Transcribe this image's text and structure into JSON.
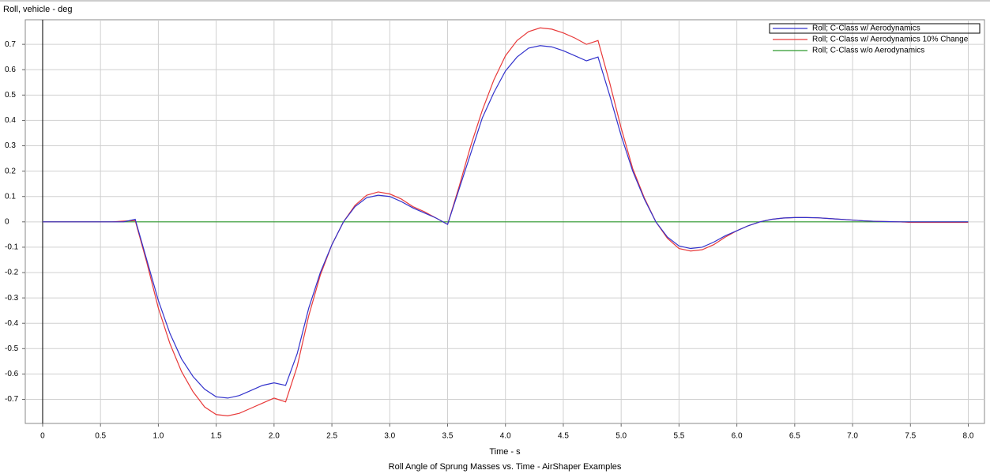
{
  "chart_data": {
    "type": "line",
    "title": "Roll Angle of Sprung Masses vs. Time - AirShaper Examples",
    "y_label": "Roll, vehicle - deg",
    "x_label": "Time - s",
    "x": [
      0,
      0.1,
      0.2,
      0.3,
      0.4,
      0.5,
      0.6,
      0.7,
      0.8,
      0.9,
      1.0,
      1.1,
      1.2,
      1.3,
      1.4,
      1.5,
      1.6,
      1.7,
      1.8,
      1.9,
      2.0,
      2.1,
      2.2,
      2.3,
      2.4,
      2.5,
      2.6,
      2.7,
      2.8,
      2.9,
      3.0,
      3.1,
      3.2,
      3.3,
      3.4,
      3.5,
      3.6,
      3.7,
      3.8,
      3.9,
      4.0,
      4.1,
      4.2,
      4.3,
      4.4,
      4.5,
      4.6,
      4.7,
      4.8,
      4.9,
      5.0,
      5.1,
      5.2,
      5.3,
      5.4,
      5.5,
      5.6,
      5.7,
      5.8,
      5.9,
      6.0,
      6.1,
      6.2,
      6.3,
      6.4,
      6.5,
      6.6,
      6.7,
      6.8,
      6.9,
      7.0,
      7.1,
      7.2,
      7.3,
      7.4,
      7.5,
      7.6,
      7.7,
      7.8,
      7.9,
      8.0
    ],
    "series": [
      {
        "name": "Roll; C-Class w/ Aerodynamics",
        "color": "#3333cc",
        "values": [
          0,
          0,
          0,
          0,
          0,
          0,
          0,
          0,
          0.01,
          -0.15,
          -0.31,
          -0.44,
          -0.54,
          -0.61,
          -0.66,
          -0.69,
          -0.695,
          -0.685,
          -0.665,
          -0.645,
          -0.635,
          -0.645,
          -0.52,
          -0.34,
          -0.2,
          -0.09,
          0,
          0.06,
          0.095,
          0.105,
          0.1,
          0.08,
          0.055,
          0.035,
          0.015,
          -0.01,
          0.13,
          0.27,
          0.41,
          0.51,
          0.595,
          0.65,
          0.685,
          0.695,
          0.69,
          0.675,
          0.655,
          0.635,
          0.65,
          0.5,
          0.34,
          0.2,
          0.09,
          0,
          -0.06,
          -0.095,
          -0.105,
          -0.1,
          -0.08,
          -0.055,
          -0.035,
          -0.015,
          0,
          0.01,
          0.015,
          0.017,
          0.017,
          0.016,
          0.013,
          0.01,
          0.007,
          0.004,
          0.002,
          0.001,
          0,
          0,
          0,
          0,
          0,
          0,
          0
        ]
      },
      {
        "name": "Roll; C-Class w/ Aerodynamics 10% Change",
        "color": "#e83a3a",
        "values": [
          0,
          0,
          0,
          0,
          0,
          0,
          0,
          0.003,
          0.005,
          -0.16,
          -0.34,
          -0.48,
          -0.59,
          -0.67,
          -0.73,
          -0.76,
          -0.765,
          -0.755,
          -0.735,
          -0.715,
          -0.695,
          -0.71,
          -0.57,
          -0.37,
          -0.21,
          -0.09,
          0,
          0.065,
          0.105,
          0.118,
          0.11,
          0.09,
          0.06,
          0.04,
          0.015,
          -0.01,
          0.14,
          0.3,
          0.44,
          0.56,
          0.655,
          0.715,
          0.75,
          0.765,
          0.76,
          0.745,
          0.725,
          0.7,
          0.715,
          0.55,
          0.37,
          0.21,
          0.095,
          0,
          -0.065,
          -0.105,
          -0.115,
          -0.11,
          -0.09,
          -0.06,
          -0.035,
          -0.015,
          0,
          0.01,
          0.015,
          0.017,
          0.017,
          0.016,
          0.013,
          0.01,
          0.007,
          0.004,
          0.002,
          0.001,
          0,
          -0.002,
          -0.002,
          -0.002,
          -0.002,
          -0.002,
          -0.002
        ]
      },
      {
        "name": "Roll; C-Class w/o Aerodynamics",
        "color": "#2e9a2e",
        "values": [
          0,
          0,
          0,
          0,
          0,
          0,
          0,
          0,
          0,
          0,
          0,
          0,
          0,
          0,
          0,
          0,
          0,
          0,
          0,
          0,
          0,
          0,
          0,
          0,
          0,
          0,
          0,
          0,
          0,
          0,
          0,
          0,
          0,
          0,
          0,
          0,
          0,
          0,
          0,
          0,
          0,
          0,
          0,
          0,
          0,
          0,
          0,
          0,
          0,
          0,
          0,
          0,
          0,
          0,
          0,
          0,
          0,
          0,
          0,
          0,
          0,
          0,
          0,
          0,
          0,
          0,
          0,
          0,
          0,
          0,
          0,
          0,
          0,
          0,
          0,
          0,
          0,
          0,
          0,
          0,
          0
        ]
      }
    ],
    "xlim": [
      -0.15,
      8.14
    ],
    "ylim": [
      -0.795,
      0.797
    ],
    "xticks": [
      0,
      0.5,
      {
        "value": 1,
        "label": "1.0"
      },
      1.5,
      {
        "value": 2,
        "label": "2.0"
      },
      2.5,
      {
        "value": 3,
        "label": "3.0"
      },
      3.5,
      {
        "value": 4,
        "label": "4.0"
      },
      4.5,
      {
        "value": 5,
        "label": "5.0"
      },
      5.5,
      {
        "value": 6,
        "label": "6.0"
      },
      6.5,
      {
        "value": 7,
        "label": "7.0"
      },
      7.5,
      {
        "value": 8,
        "label": "8.0"
      }
    ],
    "yticks": [
      -0.7,
      -0.6,
      -0.5,
      -0.4,
      -0.3,
      -0.2,
      -0.1,
      0,
      0.1,
      0.2,
      0.3,
      0.4,
      0.5,
      0.6,
      0.7
    ],
    "grid": true,
    "legend": "top-right"
  }
}
